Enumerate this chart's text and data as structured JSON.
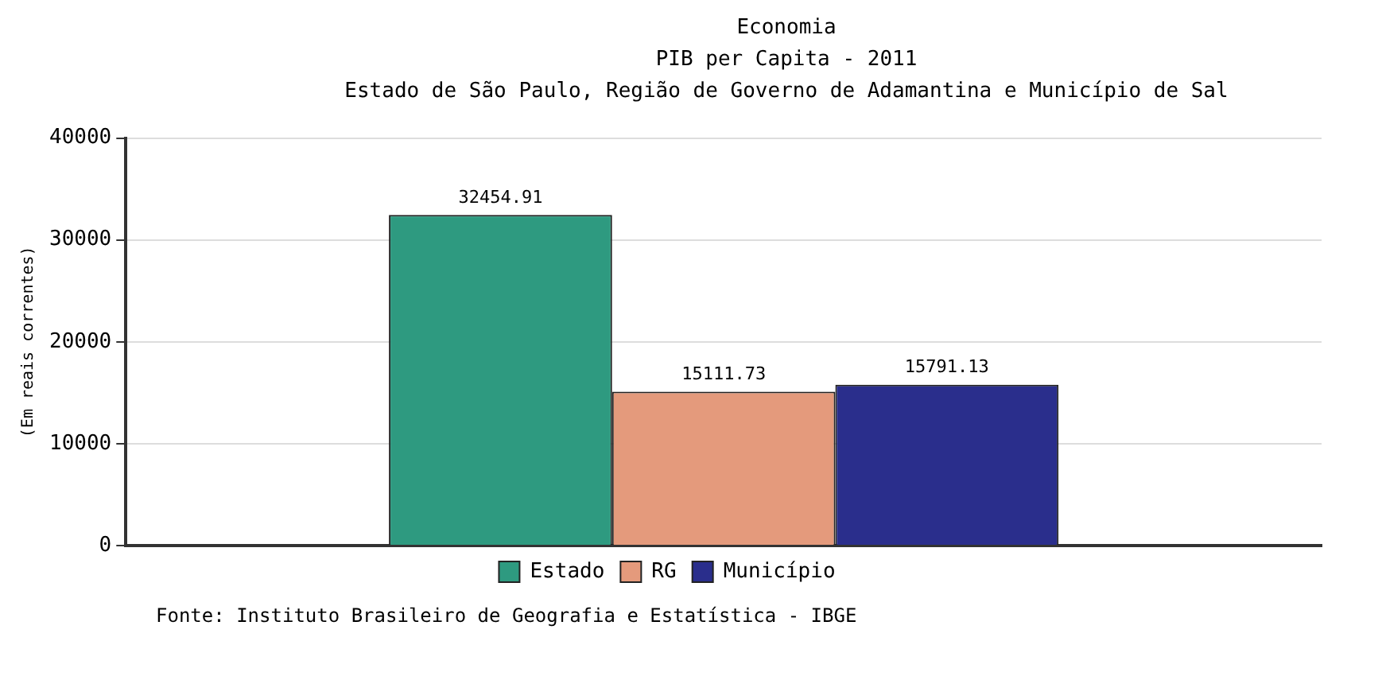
{
  "chart_data": {
    "type": "bar",
    "title": "Economia",
    "subtitle": "PIB per Capita - 2011\nEstado de São Paulo, Região de Governo de Adamantina e Município de Sal",
    "ylabel": "(Em reais correntes)",
    "categories": [
      null
    ],
    "series": [
      {
        "name": "Estado",
        "color": "#2e9a80",
        "values": [
          32454.91
        ]
      },
      {
        "name": "RG",
        "color": "#e49a7c",
        "values": [
          15111.73
        ]
      },
      {
        "name": "Município",
        "color": "#2a2e8c",
        "values": [
          15791.13
        ]
      }
    ],
    "ylim": [
      0,
      40000
    ],
    "yticks": [
      0,
      10000,
      20000,
      30000,
      40000
    ],
    "grid": "y",
    "legend": "bottom",
    "data_labels": true,
    "annotations": [
      "Fonte: Instituto Brasileiro de Geografia e Estatística - IBGE"
    ]
  }
}
